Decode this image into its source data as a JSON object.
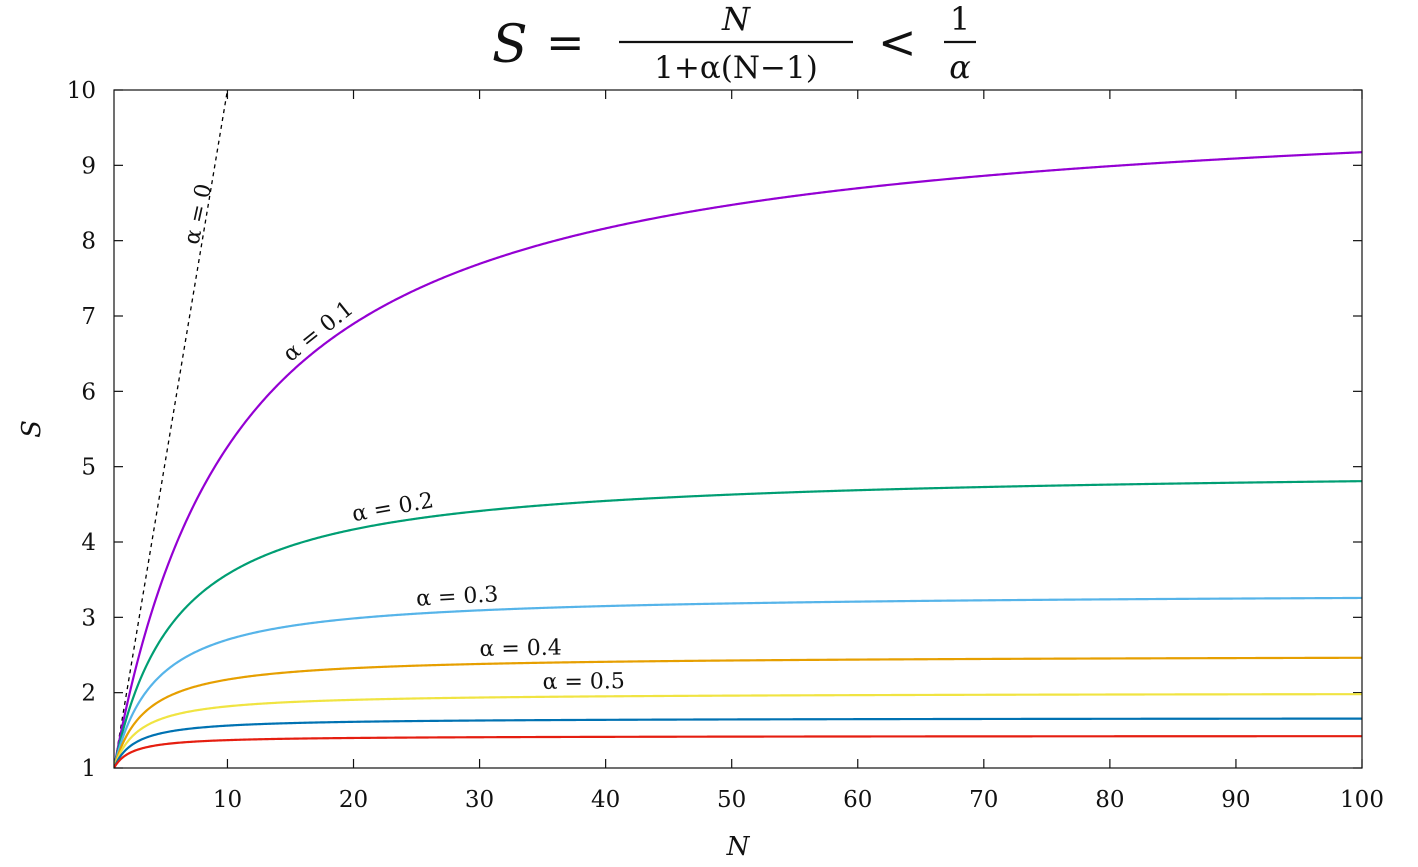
{
  "chart_data": {
    "type": "line",
    "title": {
      "lhs": "S",
      "eq": "=",
      "frac_num": "N",
      "frac_den": "1+α(N−1)",
      "lt": "<",
      "bound_num": "1",
      "bound_den": "α"
    },
    "xlabel": "N",
    "ylabel": "S",
    "xlim": [
      1,
      100
    ],
    "ylim": [
      1,
      10
    ],
    "xticks": [
      10,
      20,
      30,
      40,
      50,
      60,
      70,
      80,
      90,
      100
    ],
    "yticks": [
      1,
      2,
      3,
      4,
      5,
      6,
      7,
      8,
      9,
      10
    ],
    "grid": false,
    "legend": "none",
    "formula": "S = N / (1 + alpha*(N-1))",
    "series": [
      {
        "alpha": 0,
        "label": "α = 0",
        "color": "#000000",
        "dashed": true
      },
      {
        "alpha": 0.1,
        "label": "α = 0.1",
        "color": "#9400D3",
        "dashed": false
      },
      {
        "alpha": 0.2,
        "label": "α = 0.2",
        "color": "#009E73",
        "dashed": false
      },
      {
        "alpha": 0.3,
        "label": "α = 0.3",
        "color": "#56B4E9",
        "dashed": false
      },
      {
        "alpha": 0.4,
        "label": "α = 0.4",
        "color": "#E69F00",
        "dashed": false
      },
      {
        "alpha": 0.5,
        "label": "α = 0.5",
        "color": "#F0E442",
        "dashed": false
      },
      {
        "alpha": 0.6,
        "label": "",
        "color": "#0072B2",
        "dashed": false
      },
      {
        "alpha": 0.7,
        "label": "",
        "color": "#E51E10",
        "dashed": false
      }
    ]
  }
}
